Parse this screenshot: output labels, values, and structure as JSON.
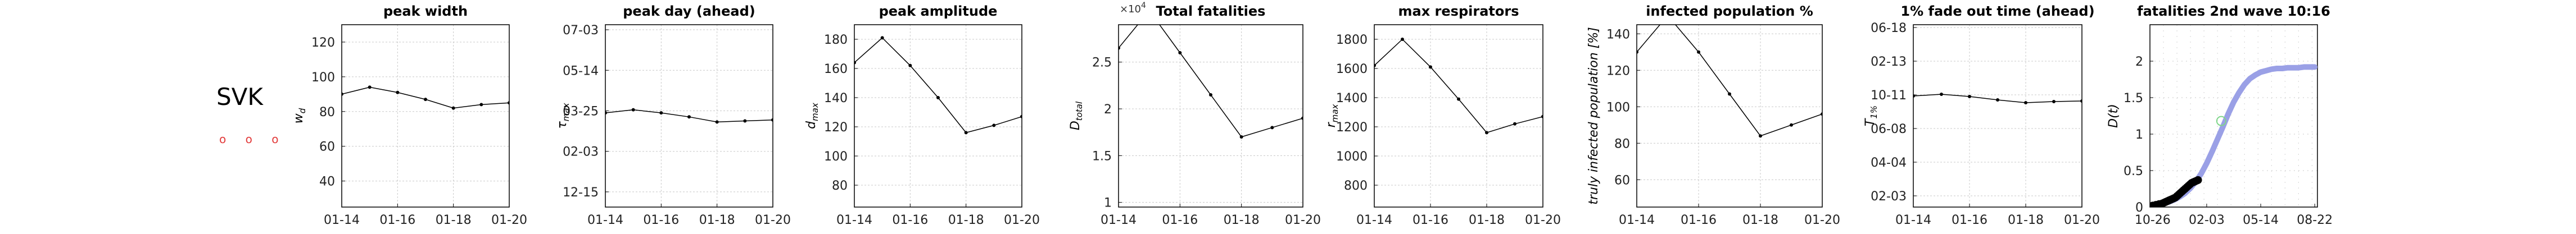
{
  "country": "SVK",
  "status_marks": "o o o",
  "chart_data": [
    {
      "type": "line",
      "title": "peak width",
      "ylabel": "w_d",
      "x": [
        "01-14",
        "01-15",
        "01-16",
        "01-17",
        "01-18",
        "01-19",
        "01-20"
      ],
      "x_ticks": [
        "01-14",
        "01-16",
        "01-18",
        "01-20"
      ],
      "values": [
        90,
        94,
        91,
        87,
        82,
        84,
        85
      ],
      "ylim": [
        25,
        130
      ],
      "y_ticks": [
        40,
        60,
        80,
        100,
        120
      ],
      "y_tick_labels": [
        "40",
        "60",
        "80",
        "100",
        "120"
      ],
      "grid": true
    },
    {
      "type": "line",
      "title": "peak day (ahead)",
      "ylabel": "τ_{max}",
      "x": [
        "01-14",
        "01-15",
        "01-16",
        "01-17",
        "01-18",
        "01-19",
        "01-20"
      ],
      "x_ticks": [
        "01-14",
        "01-16",
        "01-18",
        "01-20"
      ],
      "values": [
        78,
        81,
        78,
        74,
        69,
        70,
        71
      ],
      "ylim": [
        -15,
        165
      ],
      "y_ticks": [
        0,
        40,
        80,
        120,
        160
      ],
      "y_tick_labels": [
        "12-15",
        "02-03",
        "03-25",
        "05-14",
        "07-03"
      ],
      "grid": true
    },
    {
      "type": "line",
      "title": "peak amplitude",
      "ylabel": "d_{max}",
      "x": [
        "01-14",
        "01-15",
        "01-16",
        "01-17",
        "01-18",
        "01-19",
        "01-20"
      ],
      "x_ticks": [
        "01-14",
        "01-16",
        "01-18",
        "01-20"
      ],
      "values": [
        164,
        181,
        162,
        140,
        116,
        121,
        127
      ],
      "ylim": [
        65,
        190
      ],
      "y_ticks": [
        80,
        100,
        120,
        140,
        160,
        180
      ],
      "y_tick_labels": [
        "80",
        "100",
        "120",
        "140",
        "160",
        "180"
      ],
      "grid": true
    },
    {
      "type": "line",
      "title": "Total fatalities",
      "ylabel": "D_{total}",
      "exponent_label": "×10",
      "exponent_power": "4",
      "x": [
        "01-14",
        "01-15",
        "01-16",
        "01-17",
        "01-18",
        "01-19",
        "01-20"
      ],
      "x_ticks": [
        "01-14",
        "01-16",
        "01-18",
        "01-20"
      ],
      "values": [
        2.65,
        3.05,
        2.6,
        2.15,
        1.7,
        1.8,
        1.9
      ],
      "ylim": [
        0.95,
        2.9
      ],
      "y_ticks": [
        1,
        1.5,
        2,
        2.5
      ],
      "y_tick_labels": [
        "1",
        "1.5",
        "2",
        "2.5"
      ],
      "grid": true
    },
    {
      "type": "line",
      "title": "max respirators",
      "ylabel": "r_{max}",
      "x": [
        "01-14",
        "01-15",
        "01-16",
        "01-17",
        "01-18",
        "01-19",
        "01-20"
      ],
      "x_ticks": [
        "01-14",
        "01-16",
        "01-18",
        "01-20"
      ],
      "values": [
        1620,
        1800,
        1610,
        1390,
        1160,
        1220,
        1270
      ],
      "ylim": [
        650,
        1900
      ],
      "y_ticks": [
        800,
        1000,
        1200,
        1400,
        1600,
        1800
      ],
      "y_tick_labels": [
        "800",
        "1000",
        "1200",
        "1400",
        "1600",
        "1800"
      ],
      "grid": true
    },
    {
      "type": "line",
      "title": "infected population %",
      "ylabel": "truly infected population [%]",
      "x": [
        "01-14",
        "01-15",
        "01-16",
        "01-17",
        "01-18",
        "01-19",
        "01-20"
      ],
      "x_ticks": [
        "01-14",
        "01-16",
        "01-18",
        "01-20"
      ],
      "values": [
        130,
        150,
        130,
        107,
        84,
        90,
        96
      ],
      "ylim": [
        45,
        145
      ],
      "y_ticks": [
        60,
        80,
        100,
        120,
        140
      ],
      "y_tick_labels": [
        "60",
        "80",
        "100",
        "120",
        "140"
      ],
      "grid": true
    },
    {
      "type": "line",
      "title": "1% fade out time (ahead)",
      "ylabel": "T_{1%}",
      "x": [
        "01-14",
        "01-15",
        "01-16",
        "01-17",
        "01-18",
        "01-19",
        "01-20"
      ],
      "x_ticks": [
        "01-14",
        "01-16",
        "01-18",
        "01-20"
      ],
      "values": [
        218,
        221,
        217,
        211,
        206,
        208,
        209
      ],
      "ylim": [
        20,
        345
      ],
      "y_ticks": [
        40,
        100,
        160,
        220,
        280,
        340
      ],
      "y_tick_labels": [
        "02-03",
        "04-04",
        "06-08",
        "10-11",
        "02-13",
        "06-18"
      ],
      "grid": true
    },
    {
      "type": "line",
      "title": "fatalities 2nd wave 10:16",
      "ylabel": "D(t)",
      "x_ticks_pos": [
        0,
        100,
        200,
        300
      ],
      "x_tick_labels": [
        "10-26",
        "02-03",
        "05-14",
        "08-22"
      ],
      "xlim": [
        -5,
        305
      ],
      "ylim": [
        0,
        2.5
      ],
      "y_ticks": [
        0,
        0.5,
        1,
        1.5,
        2
      ],
      "y_tick_labels": [
        "0",
        "0.5",
        "1",
        "1.5",
        "2"
      ],
      "series": [
        {
          "kind": "fit_curve",
          "color": "#9aa0e6",
          "x": [
            0,
            10,
            20,
            30,
            40,
            50,
            60,
            70,
            80,
            90,
            100,
            110,
            120,
            130,
            140,
            150,
            160,
            170,
            180,
            190,
            200,
            210,
            220,
            230,
            240,
            250,
            260,
            270,
            280,
            290,
            300
          ],
          "values": [
            0.02,
            0.03,
            0.05,
            0.07,
            0.1,
            0.14,
            0.19,
            0.26,
            0.35,
            0.46,
            0.6,
            0.76,
            0.93,
            1.1,
            1.28,
            1.44,
            1.57,
            1.68,
            1.76,
            1.81,
            1.85,
            1.87,
            1.89,
            1.9,
            1.9,
            1.91,
            1.91,
            1.91,
            1.92,
            1.92,
            1.92
          ]
        },
        {
          "kind": "observed",
          "color": "#000000",
          "x": [
            0,
            3,
            6,
            9,
            12,
            15,
            18,
            21,
            24,
            27,
            30,
            33,
            36,
            39,
            42,
            45,
            48,
            51,
            54,
            57,
            60,
            63,
            66,
            69,
            72,
            75,
            78,
            81,
            84
          ],
          "values": [
            0.02,
            0.02,
            0.03,
            0.03,
            0.04,
            0.04,
            0.05,
            0.06,
            0.07,
            0.08,
            0.09,
            0.1,
            0.11,
            0.12,
            0.13,
            0.15,
            0.17,
            0.19,
            0.21,
            0.23,
            0.25,
            0.27,
            0.29,
            0.31,
            0.33,
            0.34,
            0.35,
            0.36,
            0.37
          ]
        },
        {
          "kind": "peak_marker",
          "color": "#7fd68a",
          "x": [
            127
          ],
          "values": [
            1.18
          ]
        }
      ],
      "grid": true,
      "grid_style": "dotted"
    }
  ]
}
